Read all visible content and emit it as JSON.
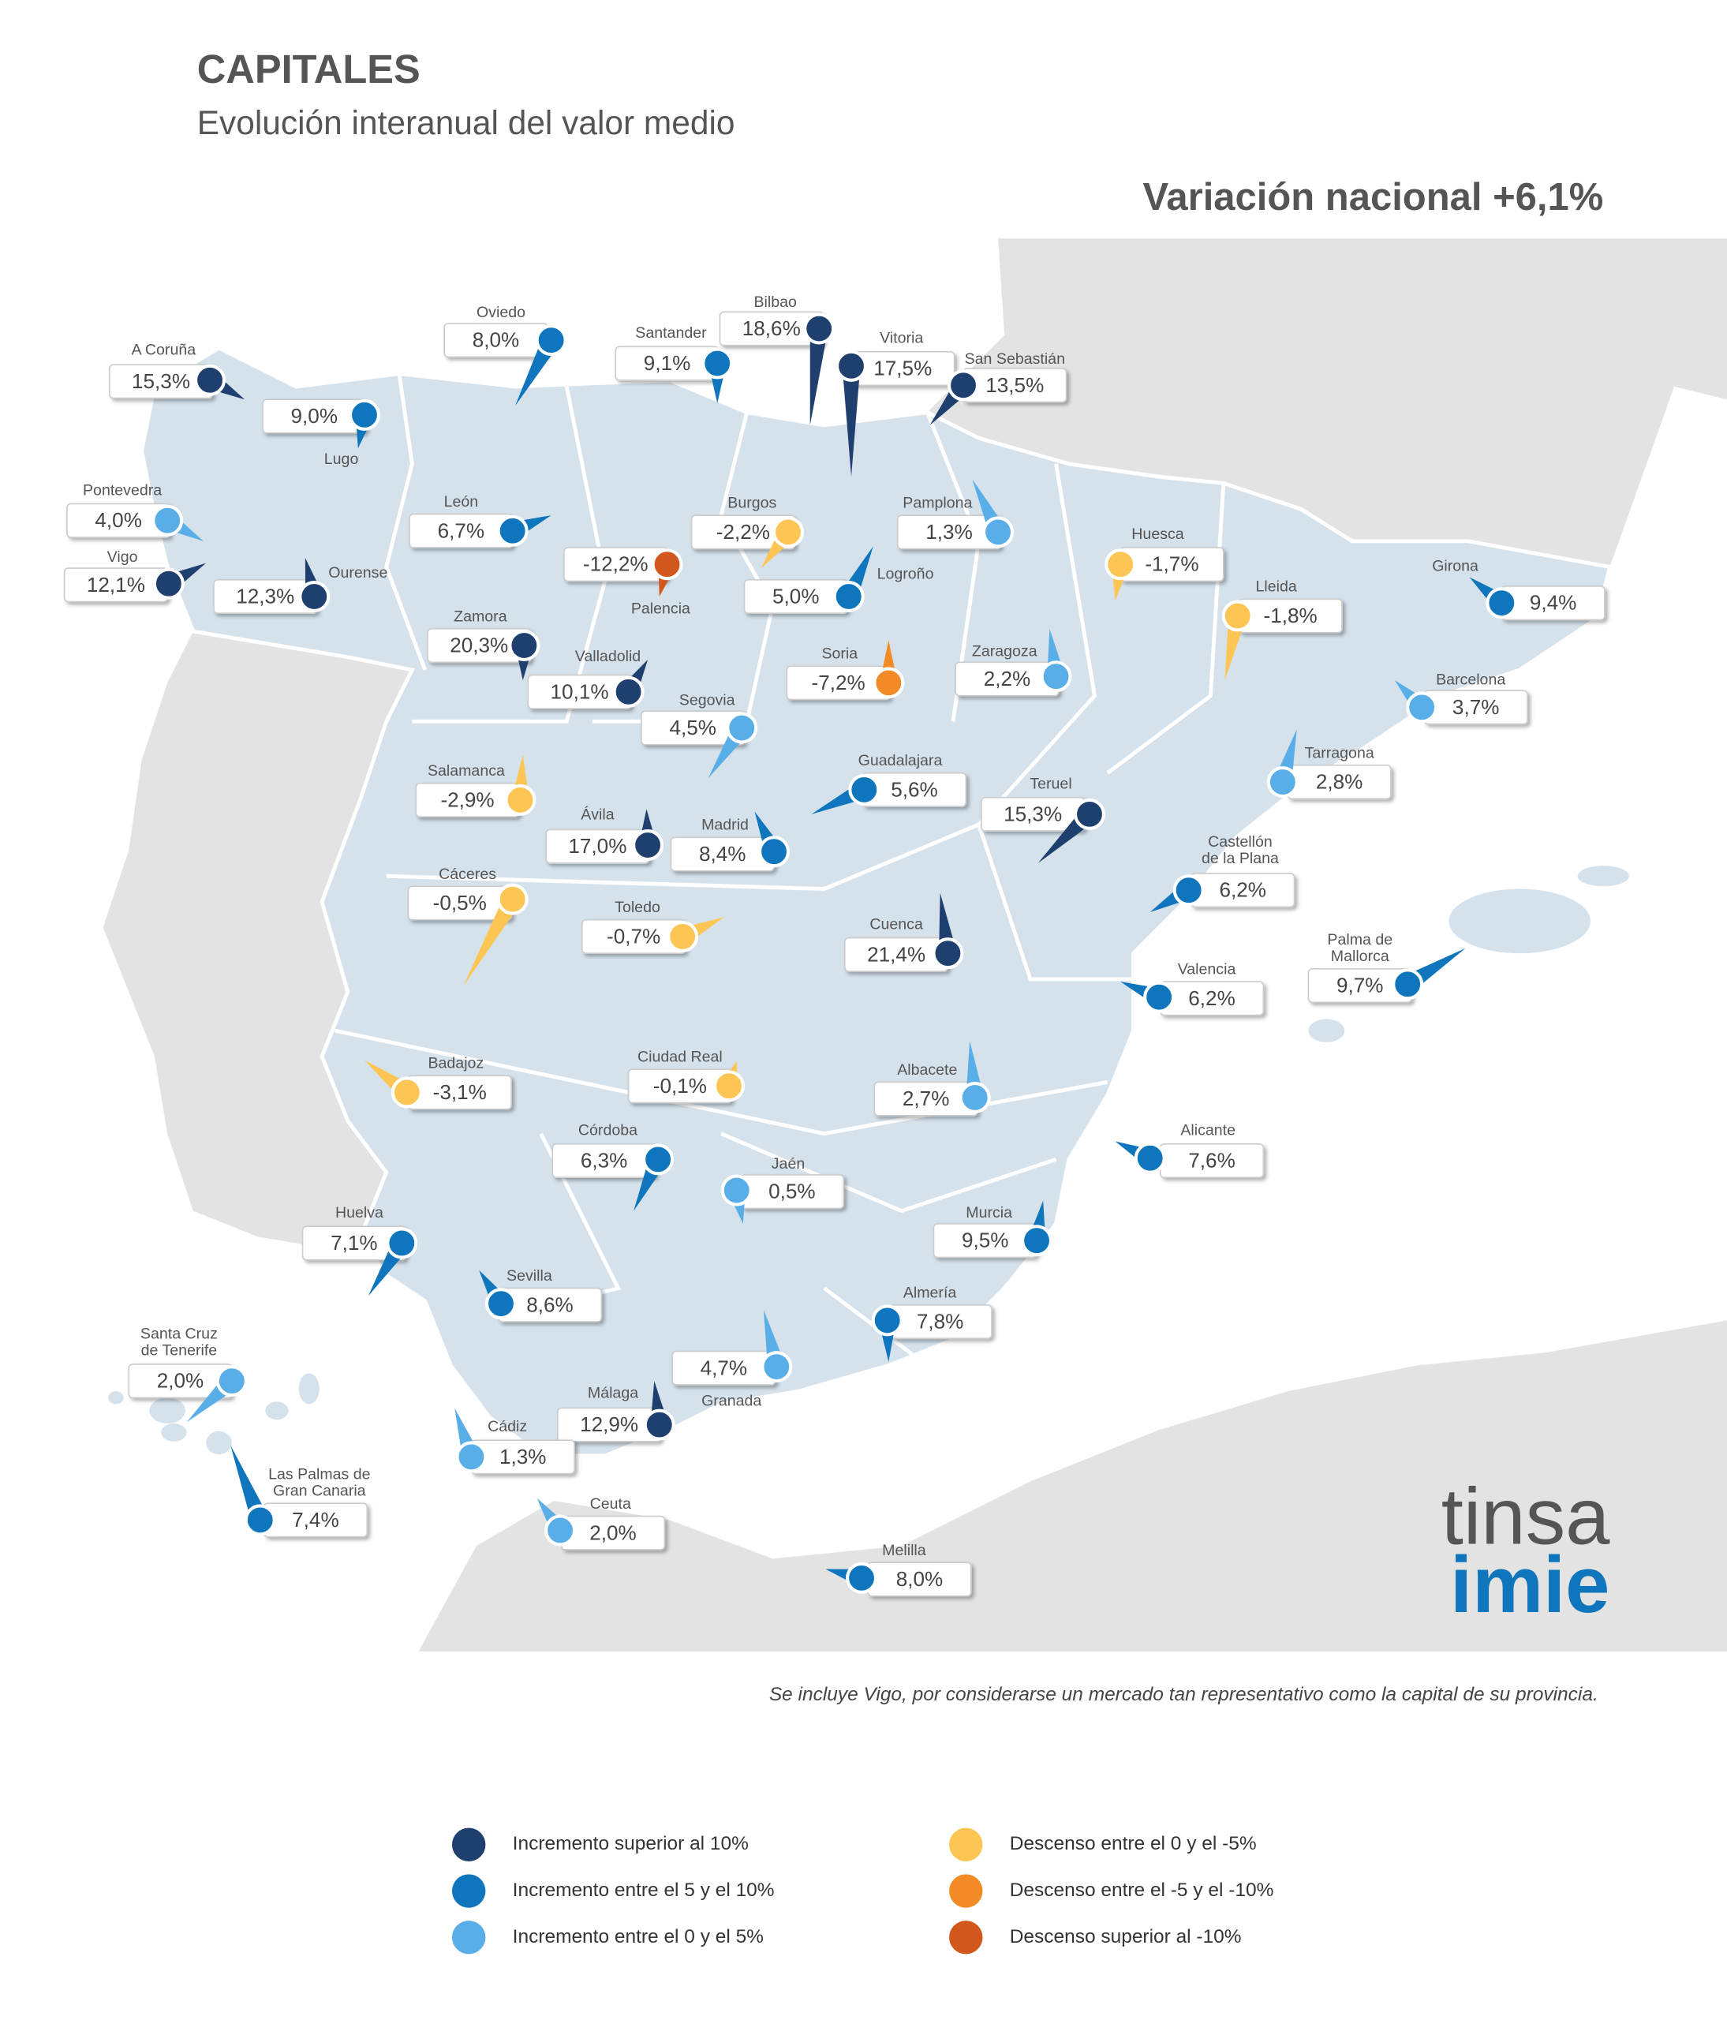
{
  "header": {
    "title": "CAPITALES",
    "subtitle": "Evolución interanual del valor medio",
    "national": "Variación nacional +6,1%"
  },
  "cities": [
    {
      "name": [
        "A Coruña"
      ],
      "value": "15,3%",
      "color": "#1f3f6e"
    },
    {
      "name": [
        "Oviedo"
      ],
      "value": "8,0%",
      "color": "#0f75bc"
    },
    {
      "name": [
        "Lugo"
      ],
      "value": "9,0%",
      "color": "#0f75bc"
    },
    {
      "name": [
        "Santander"
      ],
      "value": "9,1%",
      "color": "#0f75bc"
    },
    {
      "name": [
        "Bilbao"
      ],
      "value": "18,6%",
      "color": "#1f3f6e"
    },
    {
      "name": [
        "Vitoria"
      ],
      "value": "17,5%",
      "color": "#1f3f6e"
    },
    {
      "name": [
        "San Sebastián"
      ],
      "value": "13,5%",
      "color": "#1f3f6e"
    },
    {
      "name": [
        "Pontevedra"
      ],
      "value": "4,0%",
      "color": "#5aaee8"
    },
    {
      "name": [
        "Vigo"
      ],
      "value": "12,1%",
      "color": "#1f3f6e"
    },
    {
      "name": [
        "Ourense"
      ],
      "value": "12,3%",
      "color": "#1f3f6e"
    },
    {
      "name": [
        "León"
      ],
      "value": "6,7%",
      "color": "#0f75bc"
    },
    {
      "name": [
        "Burgos"
      ],
      "value": "-2,2%",
      "color": "#fdc654"
    },
    {
      "name": [
        "Pamplona"
      ],
      "value": "1,3%",
      "color": "#5aaee8"
    },
    {
      "name": [
        "Palencia"
      ],
      "value": "-12,2%",
      "color": "#d2571d"
    },
    {
      "name": [
        "Logroño"
      ],
      "value": "5,0%",
      "color": "#0f75bc"
    },
    {
      "name": [
        "Huesca"
      ],
      "value": "-1,7%",
      "color": "#fdc654"
    },
    {
      "name": [
        "Lleida"
      ],
      "value": "-1,8%",
      "color": "#fdc654"
    },
    {
      "name": [
        "Girona"
      ],
      "value": "9,4%",
      "color": "#0f75bc"
    },
    {
      "name": [
        "Zamora"
      ],
      "value": "20,3%",
      "color": "#1f3f6e"
    },
    {
      "name": [
        "Valladolid"
      ],
      "value": "10,1%",
      "color": "#1f3f6e"
    },
    {
      "name": [
        "Soria"
      ],
      "value": "-7,2%",
      "color": "#f28b26"
    },
    {
      "name": [
        "Zaragoza"
      ],
      "value": "2,2%",
      "color": "#5aaee8"
    },
    {
      "name": [
        "Barcelona"
      ],
      "value": "3,7%",
      "color": "#5aaee8"
    },
    {
      "name": [
        "Segovia"
      ],
      "value": "4,5%",
      "color": "#5aaee8"
    },
    {
      "name": [
        "Guadalajara"
      ],
      "value": "5,6%",
      "color": "#0f75bc"
    },
    {
      "name": [
        "Tarragona"
      ],
      "value": "2,8%",
      "color": "#5aaee8"
    },
    {
      "name": [
        "Salamanca"
      ],
      "value": "-2,9%",
      "color": "#fdc654"
    },
    {
      "name": [
        "Teruel"
      ],
      "value": "15,3%",
      "color": "#1f3f6e"
    },
    {
      "name": [
        "Ávila"
      ],
      "value": "17,0%",
      "color": "#1f3f6e"
    },
    {
      "name": [
        "Madrid"
      ],
      "value": "8,4%",
      "color": "#0f75bc"
    },
    {
      "name": [
        "Castellón",
        "de la Plana"
      ],
      "value": "6,2%",
      "color": "#0f75bc"
    },
    {
      "name": [
        "Cáceres"
      ],
      "value": "-0,5%",
      "color": "#fdc654"
    },
    {
      "name": [
        "Toledo"
      ],
      "value": "-0,7%",
      "color": "#fdc654"
    },
    {
      "name": [
        "Cuenca"
      ],
      "value": "21,4%",
      "color": "#1f3f6e"
    },
    {
      "name": [
        "Palma de",
        "Mallorca"
      ],
      "value": "9,7%",
      "color": "#0f75bc"
    },
    {
      "name": [
        "Valencia"
      ],
      "value": "6,2%",
      "color": "#0f75bc"
    },
    {
      "name": [
        "Badajoz"
      ],
      "value": "-3,1%",
      "color": "#fdc654"
    },
    {
      "name": [
        "Ciudad Real"
      ],
      "value": "-0,1%",
      "color": "#fdc654"
    },
    {
      "name": [
        "Albacete"
      ],
      "value": "2,7%",
      "color": "#5aaee8"
    },
    {
      "name": [
        "Córdoba"
      ],
      "value": "6,3%",
      "color": "#0f75bc"
    },
    {
      "name": [
        "Alicante"
      ],
      "value": "7,6%",
      "color": "#0f75bc"
    },
    {
      "name": [
        "Jaén"
      ],
      "value": "0,5%",
      "color": "#5aaee8"
    },
    {
      "name": [
        "Huelva"
      ],
      "value": "7,1%",
      "color": "#0f75bc"
    },
    {
      "name": [
        "Murcia"
      ],
      "value": "9,5%",
      "color": "#0f75bc"
    },
    {
      "name": [
        "Sevilla"
      ],
      "value": "8,6%",
      "color": "#0f75bc"
    },
    {
      "name": [
        "Almería"
      ],
      "value": "7,8%",
      "color": "#0f75bc"
    },
    {
      "name": [
        "Santa Cruz",
        "de Tenerife"
      ],
      "value": "2,0%",
      "color": "#5aaee8"
    },
    {
      "name": [
        "Granada"
      ],
      "value": "4,7%",
      "color": "#5aaee8"
    },
    {
      "name": [
        "Málaga"
      ],
      "value": "12,9%",
      "color": "#1f3f6e"
    },
    {
      "name": [
        "Cádiz"
      ],
      "value": "1,3%",
      "color": "#5aaee8"
    },
    {
      "name": [
        "Las Palmas de",
        "Gran Canaria"
      ],
      "value": "7,4%",
      "color": "#0f75bc"
    },
    {
      "name": [
        "Ceuta"
      ],
      "value": "2,0%",
      "color": "#5aaee8"
    },
    {
      "name": [
        "Melilla"
      ],
      "value": "8,0%",
      "color": "#0f75bc"
    }
  ],
  "footnote": "Se incluye Vigo, por considerarse un mercado tan representativo como la capital de su provincia.",
  "logo": {
    "top": "tinsa",
    "bottom": "imie"
  },
  "legend": [
    {
      "label": "Incremento superior al 10%",
      "color": "#1f3f6e"
    },
    {
      "label": "Incremento entre el 5 y el 10%",
      "color": "#0f75bc"
    },
    {
      "label": "Incremento entre el 0 y el 5%",
      "color": "#5aaee8"
    },
    {
      "label": "Descenso entre el 0 y el -5%",
      "color": "#fdc654"
    },
    {
      "label": "Descenso entre el -5 y el -10%",
      "color": "#f28b26"
    },
    {
      "label": "Descenso superior al -10%",
      "color": "#d2571d"
    }
  ]
}
